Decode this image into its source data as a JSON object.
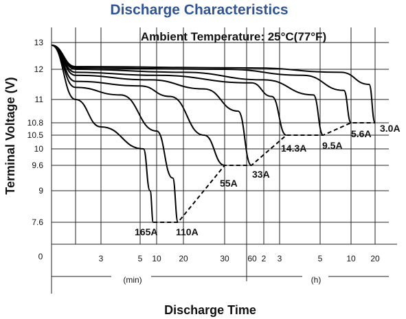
{
  "chart_data": {
    "type": "line",
    "title": "Discharge Characteristics",
    "annotation": "Ambient Temperature: 25°C(77°F)",
    "ylabel": "Terminal Voltage (V)",
    "xlabel": "Discharge Time",
    "x_scale": "log",
    "x_range": [
      "1 min",
      "30 h"
    ],
    "y_tick_labels": [
      "13",
      "12",
      "11",
      "10.8",
      "10.5",
      "10",
      "9.6",
      "9",
      "7.6"
    ],
    "y_tick_values": [
      13,
      12,
      11,
      10.8,
      10.5,
      10,
      9.6,
      9,
      7.6
    ],
    "x_tick_labels": [
      "0",
      "3",
      "5",
      "10",
      "20",
      "30",
      "60",
      "2",
      "3",
      "5",
      "10",
      "20"
    ],
    "x_units": [
      "(min)",
      "(h)"
    ],
    "grid": true,
    "series": [
      {
        "name": "165A",
        "x_min": [
          0,
          1,
          3,
          6,
          8,
          9
        ],
        "y": [
          12.9,
          11.0,
          10.7,
          10.0,
          9.0,
          7.6
        ]
      },
      {
        "name": "110A",
        "x_min": [
          0,
          1,
          4,
          10,
          16,
          18
        ],
        "y": [
          12.9,
          11.4,
          11.15,
          10.6,
          9.3,
          7.6
        ]
      },
      {
        "name": "55A",
        "x_min": [
          0,
          1,
          5,
          15,
          25,
          30
        ],
        "y": [
          12.9,
          11.6,
          11.45,
          11.1,
          10.5,
          9.6
        ]
      },
      {
        "name": "33A",
        "x_min": [
          0,
          1,
          8,
          25,
          45,
          60
        ],
        "y": [
          12.9,
          11.8,
          11.65,
          11.35,
          10.9,
          9.6
        ]
      },
      {
        "name": "14.3A",
        "x_min": [
          0,
          1,
          10,
          60,
          150,
          200
        ],
        "y": [
          12.9,
          11.9,
          11.8,
          11.55,
          11.1,
          10.5
        ]
      },
      {
        "name": "9.5A",
        "x_min": [
          0,
          1,
          20,
          120,
          280,
          330
        ],
        "y": [
          12.9,
          12.0,
          11.9,
          11.65,
          11.15,
          10.5
        ]
      },
      {
        "name": "5.6A",
        "x_min": [
          0,
          1,
          30,
          250,
          530,
          600
        ],
        "y": [
          12.9,
          12.05,
          12.0,
          11.8,
          11.3,
          10.8
        ]
      },
      {
        "name": "3.0A",
        "x_min": [
          0,
          1,
          60,
          500,
          1050,
          1200
        ],
        "y": [
          12.9,
          12.1,
          12.05,
          11.9,
          11.5,
          10.8
        ]
      }
    ],
    "end_voltage_line": {
      "x_min": [
        9,
        18,
        30,
        60,
        200,
        330,
        600,
        1200
      ],
      "y": [
        7.6,
        7.6,
        9.6,
        9.6,
        10.5,
        10.5,
        10.8,
        10.8
      ]
    }
  }
}
